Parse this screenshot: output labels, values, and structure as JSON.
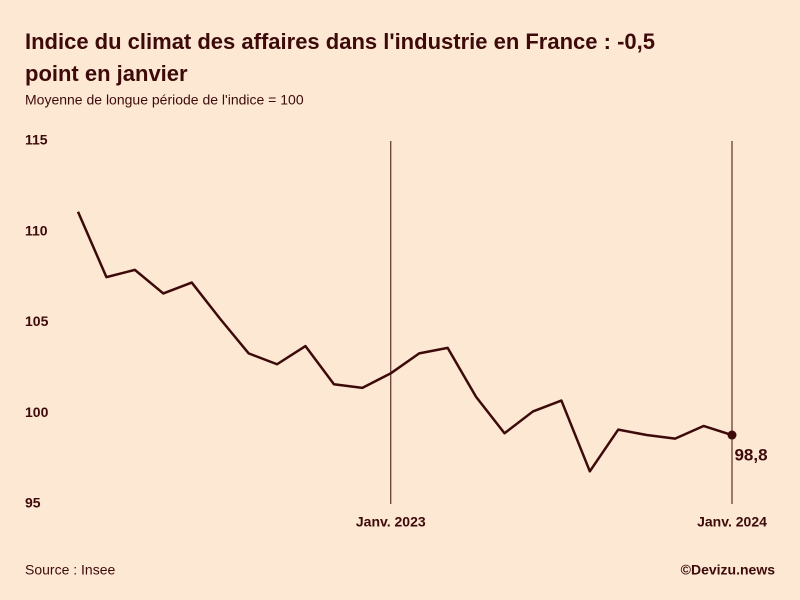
{
  "chart_data": {
    "type": "line",
    "title": [
      "Indice du climat des affaires dans l'industrie en France : -0,5",
      "point en janvier"
    ],
    "subtitle": "Moyenne de longue période de l'indice = 100",
    "categories": [
      null,
      null,
      null,
      null,
      null,
      null,
      null,
      null,
      null,
      null,
      null,
      "Janv. 2023",
      null,
      null,
      null,
      null,
      null,
      null,
      null,
      null,
      null,
      null,
      null,
      "Janv. 2024"
    ],
    "series": [
      {
        "name": "Indice",
        "color": "#3d0a0a",
        "values": [
          111.1,
          107.5,
          107.9,
          106.6,
          107.2,
          105.2,
          103.3,
          102.7,
          103.7,
          101.6,
          101.4,
          102.2,
          103.3,
          103.6,
          100.9,
          98.9,
          100.1,
          100.7,
          96.8,
          99.1,
          98.8,
          98.6,
          99.3,
          98.8
        ],
        "value_labels": [
          null,
          null,
          null,
          null,
          null,
          null,
          null,
          null,
          null,
          null,
          null,
          null,
          null,
          null,
          null,
          null,
          null,
          null,
          null,
          null,
          null,
          null,
          null,
          "98,8"
        ]
      }
    ],
    "ylim": [
      95,
      115
    ],
    "yticks": [
      95,
      100,
      105,
      110,
      115
    ],
    "grid": false,
    "source": "Source : Insee",
    "brand": "©Devizu.news"
  }
}
